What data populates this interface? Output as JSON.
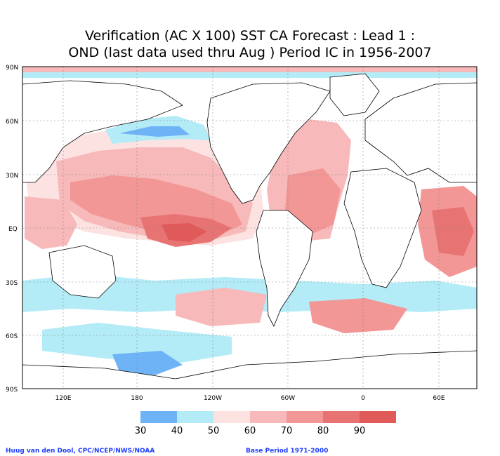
{
  "title": {
    "line1": "Verification (AC X 100) SST CA Forecast : Lead 1 :",
    "line2": "OND (last data used thru Aug ) Period IC in 1956-2007"
  },
  "axes": {
    "lat_ticks": [
      "90N",
      "60N",
      "30N",
      "EQ",
      "30S",
      "60S",
      "90S"
    ],
    "lon_ticks": [
      "120E",
      "180",
      "120W",
      "60W",
      "0",
      "60E"
    ]
  },
  "legend": {
    "colors": [
      "#6fb3f7",
      "#b3ecf7",
      "#fde2e2",
      "#f7b9b9",
      "#f29696",
      "#e87373",
      "#e05a5a"
    ],
    "labels": [
      "30",
      "40",
      "50",
      "60",
      "70",
      "80",
      "90"
    ]
  },
  "credits": {
    "left": "Huug van den Dool, CPC/NCEP/NWS/NOAA",
    "right": "Base Period 1971-2000"
  }
}
